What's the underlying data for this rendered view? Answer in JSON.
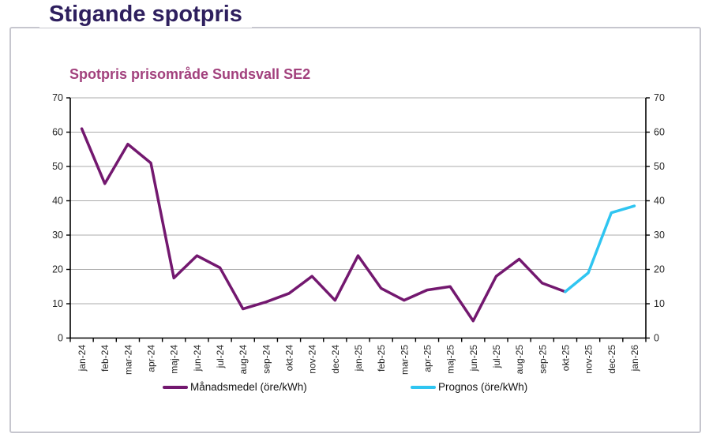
{
  "page": {
    "title": "Stigande spotpris"
  },
  "chart": {
    "title": "Spotpris prisområde Sundsvall SE2",
    "legend": [
      {
        "label": "Månadsmedel (öre/kWh)",
        "color": "#73186f"
      },
      {
        "label": "Prognos (öre/kWh)",
        "color": "#2fc5f1"
      }
    ]
  },
  "chart_data": {
    "type": "line",
    "title": "Spotpris prisområde Sundsvall SE2",
    "categories": [
      "jan-24",
      "feb-24",
      "mar-24",
      "apr-24",
      "maj-24",
      "jun-24",
      "jul-24",
      "aug-24",
      "sep-24",
      "okt-24",
      "nov-24",
      "dec-24",
      "jan-25",
      "feb-25",
      "mar-25",
      "apr-25",
      "maj-25",
      "jun-25",
      "jul-25",
      "aug-25",
      "sep-25",
      "okt-25",
      "nov-25",
      "dec-25",
      "jan-26"
    ],
    "series": [
      {
        "name": "Månadsmedel (öre/kWh)",
        "color": "#73186f",
        "values": [
          61,
          45,
          56.5,
          51,
          17.5,
          24,
          20.5,
          8.5,
          10.5,
          13,
          18,
          11,
          24,
          14.5,
          11,
          14,
          15,
          5,
          18,
          23,
          16,
          13.5,
          null,
          null,
          null
        ]
      },
      {
        "name": "Prognos (öre/kWh)",
        "color": "#2fc5f1",
        "values": [
          null,
          null,
          null,
          null,
          null,
          null,
          null,
          null,
          null,
          null,
          null,
          null,
          null,
          null,
          null,
          null,
          null,
          null,
          null,
          null,
          null,
          13.5,
          19,
          36.5,
          38.5
        ]
      }
    ],
    "xlabel": "",
    "ylabel": "",
    "ylim": [
      0,
      70
    ],
    "ytick_step": 10,
    "grid": true,
    "dual_y_axis": true,
    "legend_position": "bottom",
    "style": {
      "grid_color": "#ababab",
      "axis_color": "#000000",
      "tick_label_color": "#262626",
      "line_width": 3.5
    }
  }
}
